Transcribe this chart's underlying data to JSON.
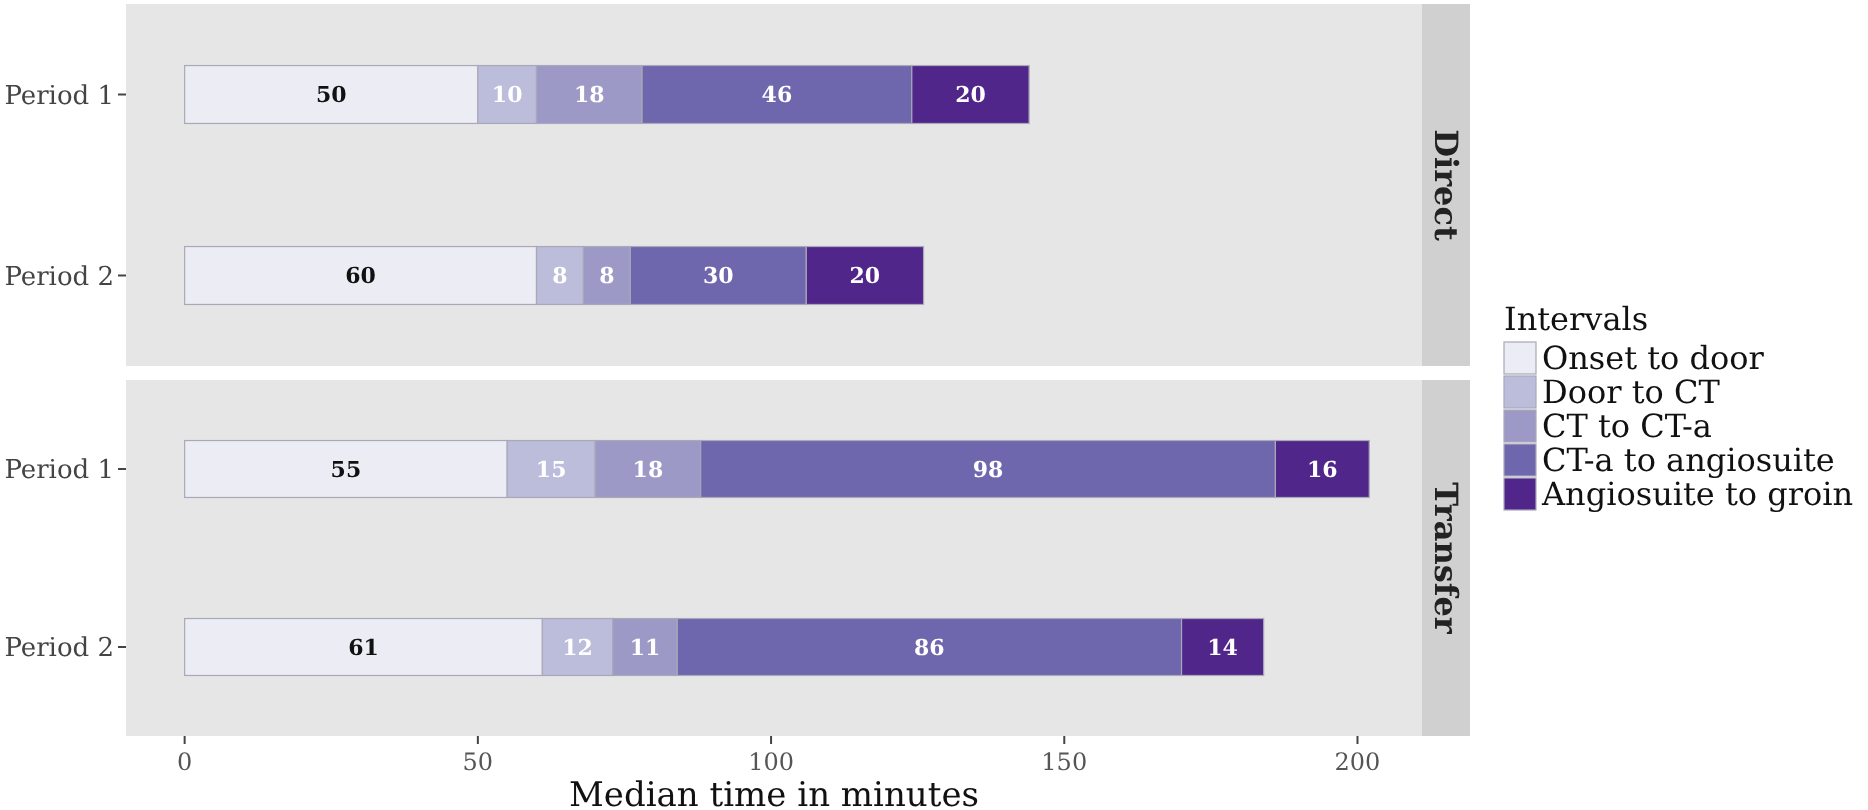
{
  "chart_data": [
    {
      "type": "bar",
      "title": "Direct",
      "orientation": "horizontal",
      "stacked": true,
      "categories": [
        "Period 1",
        "Period 2"
      ],
      "xlim": [
        -10,
        211
      ],
      "xticks": [
        0,
        50,
        100,
        150,
        200
      ],
      "tick_labels": "y",
      "grid": false,
      "data_labels": true,
      "legend": "right",
      "legend_title": "Intervals",
      "series": [
        {
          "name": "Onset to door",
          "color": "#ececf4",
          "values": [
            50,
            60
          ]
        },
        {
          "name": "Door to CT",
          "color": "#bcbcdb",
          "values": [
            10,
            8
          ]
        },
        {
          "name": "CT to CT-a",
          "color": "#9d99c7",
          "values": [
            18,
            8
          ]
        },
        {
          "name": "CT-a to angiosuite",
          "color": "#6e67ad",
          "values": [
            46,
            30
          ]
        },
        {
          "name": "Angiosuite to groin",
          "color": "#51268b",
          "values": [
            20,
            20
          ]
        }
      ]
    },
    {
      "type": "bar",
      "title": "Transfer",
      "orientation": "horizontal",
      "stacked": true,
      "categories": [
        "Period 1",
        "Period 2"
      ],
      "xlim": [
        -10,
        211
      ],
      "xticks": [
        0,
        50,
        100,
        150,
        200
      ],
      "xlabel": "Median time in minutes",
      "grid": false,
      "data_labels": true,
      "series": [
        {
          "color": "#ececf4",
          "values": [
            55,
            61
          ]
        },
        {
          "color": "#bcbcdb",
          "values": [
            15,
            12
          ]
        },
        {
          "color": "#9d99c7",
          "values": [
            18,
            11
          ]
        },
        {
          "color": "#6e67ad",
          "values": [
            98,
            86
          ]
        },
        {
          "color": "#51268b",
          "values": [
            16,
            14
          ]
        }
      ]
    }
  ]
}
